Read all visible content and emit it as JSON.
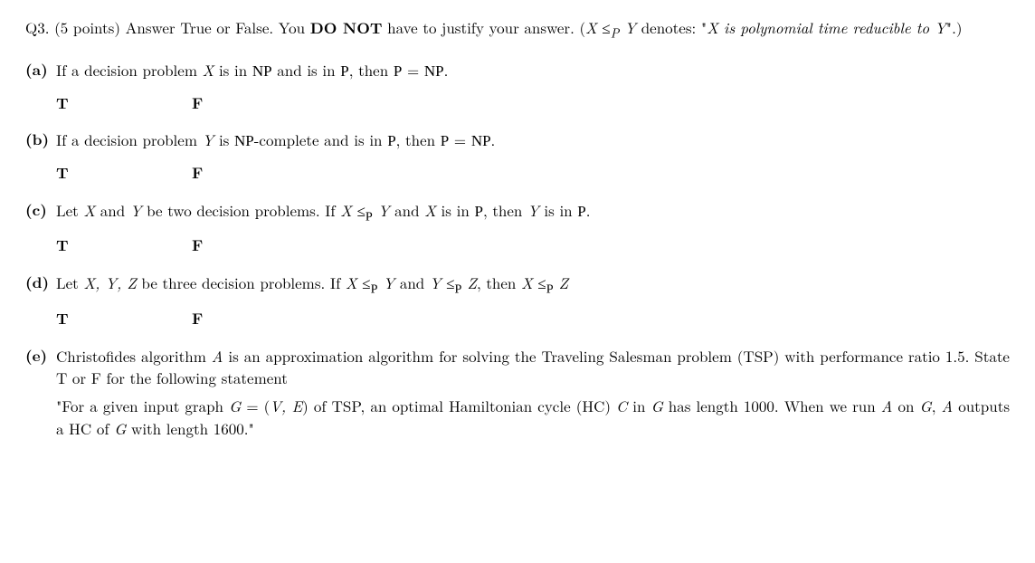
{
  "header": {
    "label": "Q3.",
    "points": "(5 points)",
    "text1": "Answer True or False. You ",
    "donot": "DO NOT",
    "text2": " have to justify your answer. (",
    "reduc_lhs": "X",
    "reduc_op": " ≤",
    "reduc_sub": "P",
    "reduc_rhs": " Y",
    "text3": " denotes: \"",
    "reduc_def": "X is polynomial time reducible to Y",
    "text4": "\".)"
  },
  "tf": {
    "T": "T",
    "F": "F"
  },
  "a": {
    "label": "(a)",
    "t1": "If a decision problem ",
    "X": "X",
    "t2": " is in ",
    "NP": "NP",
    "t3": " and is in ",
    "P": "P",
    "t4": ", then ",
    "eq_l": "P",
    "eq_mid": " = ",
    "eq_r": "NP",
    "t5": "."
  },
  "b": {
    "label": "(b)",
    "t1": "If a decision problem ",
    "Y": "Y",
    "t2": " is ",
    "NP": "NP",
    "t3": "-complete and is in ",
    "P": "P",
    "t4": ", then ",
    "eq_l": "P",
    "eq_mid": " = ",
    "eq_r": "NP",
    "t5": "."
  },
  "c": {
    "label": "(c)",
    "t1": "Let ",
    "X": "X",
    "t2": " and ",
    "Y": "Y",
    "t3": " be two decision problems. If ",
    "X2": "X",
    "op": " ≤",
    "sub": "P",
    "Y2": " Y",
    "t4": " and ",
    "X3": "X",
    "t5": " is in ",
    "P": "P",
    "t6": ", then ",
    "Y3": "Y",
    "t7": " is in ",
    "P2": "P",
    "t8": "."
  },
  "d": {
    "label": "(d)",
    "t1": "Let ",
    "XYZ": "X, Y, Z",
    "t2": " be three decision problems. If ",
    "X": "X",
    "op1": " ≤",
    "sub1": "P",
    "Y": " Y",
    "t3": " and ",
    "Y2": "Y",
    "op2": " ≤",
    "sub2": "P",
    "Z": " Z",
    "t4": ", then ",
    "X2": "X",
    "op3": " ≤",
    "sub3": "P",
    "Z2": " Z"
  },
  "e": {
    "label": "(e)",
    "t1": "Christofides algorithm ",
    "A": "A",
    "t2": " is an approximation algorithm for solving the Traveling Salesman problem (TSP) with performance ratio 1.5. State T or F for the following statement",
    "q1": "\"For a given input graph ",
    "G": "G",
    "eq": " = (",
    "VE": "V, E",
    "q2": ") of TSP, an optimal Hamiltonian cycle (HC) ",
    "C": "C",
    "q3": " in ",
    "G2": "G",
    "q4": " has length 1000. When we run ",
    "A2": "A",
    "q5": " on ",
    "G3": "G",
    "q6": ", ",
    "A3": "A",
    "q7": " outputs a HC of ",
    "G4": "G",
    "q8": " with length 1600.\""
  }
}
